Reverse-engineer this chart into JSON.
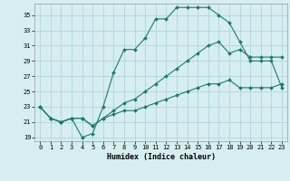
{
  "title": "",
  "xlabel": "Humidex (Indice chaleur)",
  "ylabel": "",
  "background_color": "#d6eef0",
  "grid_color": "#b0d4d8",
  "line_color": "#1a7a6e",
  "xlim": [
    -0.5,
    23.5
  ],
  "ylim": [
    18.5,
    36.5
  ],
  "xticks": [
    0,
    1,
    2,
    3,
    4,
    5,
    6,
    7,
    8,
    9,
    10,
    11,
    12,
    13,
    14,
    15,
    16,
    17,
    18,
    19,
    20,
    21,
    22,
    23
  ],
  "yticks": [
    19,
    21,
    23,
    25,
    27,
    29,
    31,
    33,
    35
  ],
  "line1_x": [
    0,
    1,
    2,
    3,
    4,
    5,
    6,
    7,
    8,
    9,
    10,
    11,
    12,
    13,
    14,
    15,
    16,
    17,
    18,
    19,
    20,
    21,
    22,
    23
  ],
  "line1_y": [
    23,
    21.5,
    21,
    21.5,
    19,
    19.5,
    23,
    27.5,
    30.5,
    30.5,
    32,
    34.5,
    34.5,
    36,
    36,
    36,
    36,
    35,
    34,
    31.5,
    29,
    29,
    29,
    25.5
  ],
  "line2_x": [
    0,
    1,
    2,
    3,
    4,
    5,
    6,
    7,
    8,
    9,
    10,
    11,
    12,
    13,
    14,
    15,
    16,
    17,
    18,
    19,
    20,
    21,
    22,
    23
  ],
  "line2_y": [
    23,
    21.5,
    21,
    21.5,
    21.5,
    20.5,
    21.5,
    22.5,
    23.5,
    24,
    25,
    26,
    27,
    28,
    29,
    30,
    31,
    31.5,
    30,
    30.5,
    29.5,
    29.5,
    29.5,
    29.5
  ],
  "line3_x": [
    0,
    1,
    2,
    3,
    4,
    5,
    6,
    7,
    8,
    9,
    10,
    11,
    12,
    13,
    14,
    15,
    16,
    17,
    18,
    19,
    20,
    21,
    22,
    23
  ],
  "line3_y": [
    23,
    21.5,
    21,
    21.5,
    21.5,
    20.5,
    21.5,
    22,
    22.5,
    22.5,
    23,
    23.5,
    24,
    24.5,
    25,
    25.5,
    26,
    26,
    26.5,
    25.5,
    25.5,
    25.5,
    25.5,
    26
  ],
  "xlabel_fontsize": 6,
  "tick_fontsize": 5,
  "marker_size": 2.0,
  "line_width": 0.8
}
